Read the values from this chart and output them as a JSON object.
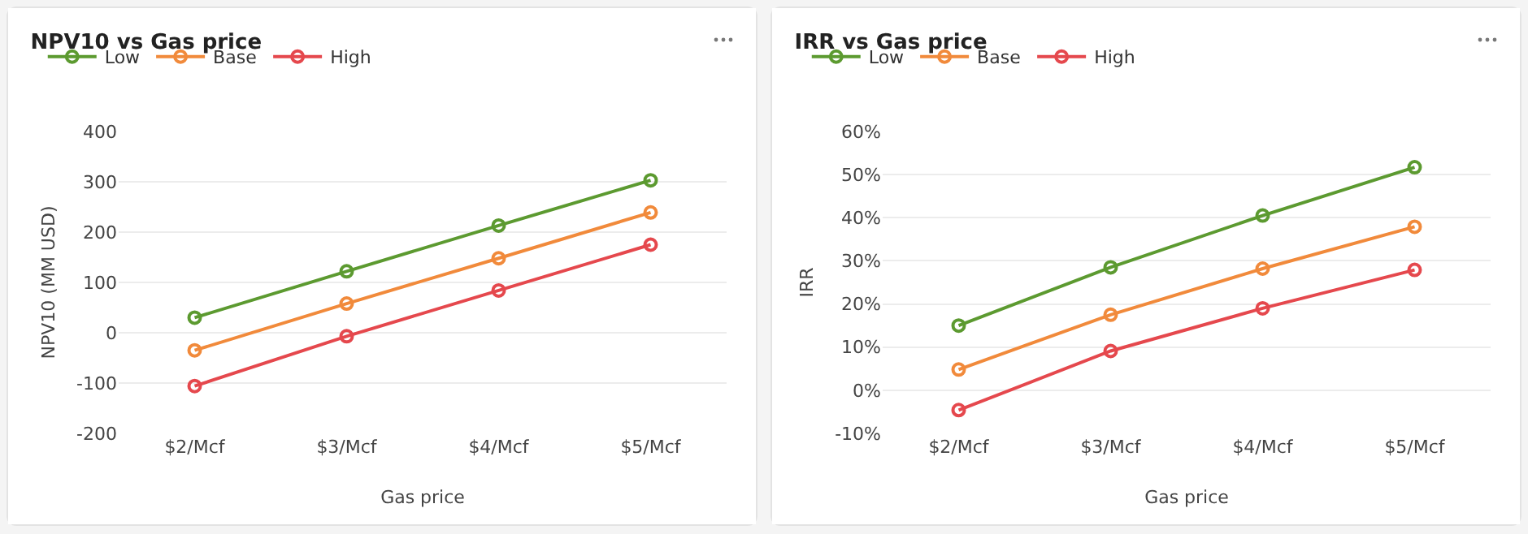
{
  "chart_data": [
    {
      "type": "line",
      "title": "NPV10 vs Gas price",
      "xlabel": "Gas price",
      "ylabel": "NPV10 (MM USD)",
      "categories": [
        "$2/Mcf",
        "$3/Mcf",
        "$4/Mcf",
        "$5/Mcf"
      ],
      "ylim": [
        -200,
        400
      ],
      "yticks": [
        -200,
        -100,
        0,
        100,
        200,
        300,
        400
      ],
      "grid": "y",
      "legend": "top left",
      "marker": "circle",
      "series": [
        {
          "name": "Low",
          "color": "#5c9a30",
          "values": [
            30,
            122,
            213,
            303
          ]
        },
        {
          "name": "Base",
          "color": "#f18a3b",
          "values": [
            -35,
            58,
            148,
            239
          ]
        },
        {
          "name": "High",
          "color": "#e5484d",
          "values": [
            -106,
            -7,
            84,
            175
          ]
        }
      ]
    },
    {
      "type": "line",
      "title": "IRR vs Gas price",
      "xlabel": "Gas price",
      "ylabel": "IRR",
      "categories": [
        "$2/Mcf",
        "$3/Mcf",
        "$4/Mcf",
        "$5/Mcf"
      ],
      "ylim": [
        -10,
        60
      ],
      "yticks": [
        {
          "value": -10,
          "label": "-10%"
        },
        {
          "value": 0,
          "label": "0%"
        },
        {
          "value": 10,
          "label": "10%"
        },
        {
          "value": 20,
          "label": "20%"
        },
        {
          "value": 30,
          "label": "30%"
        },
        {
          "value": 40,
          "label": "40%"
        },
        {
          "value": 50,
          "label": "50%"
        },
        {
          "value": 60,
          "label": "60%"
        }
      ],
      "grid": "y",
      "legend": "top left",
      "marker": "circle",
      "series": [
        {
          "name": "Low",
          "color": "#5c9a30",
          "values": [
            15,
            28.5,
            40.5,
            51.7
          ]
        },
        {
          "name": "Base",
          "color": "#f18a3b",
          "values": [
            4.8,
            17.5,
            28.2,
            37.9
          ]
        },
        {
          "name": "High",
          "color": "#e5484d",
          "values": [
            -4.6,
            9.1,
            19,
            27.9
          ]
        }
      ]
    }
  ]
}
